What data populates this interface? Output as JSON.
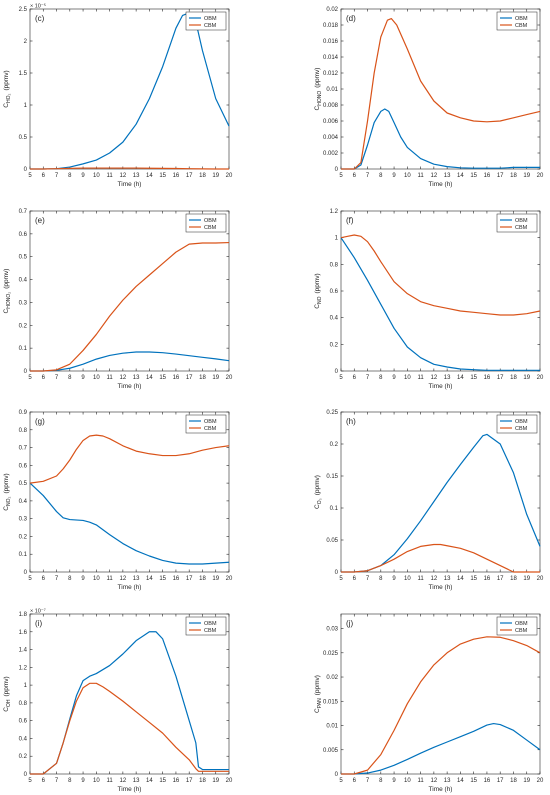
{
  "xlabel": "Time (h)",
  "series_colors": {
    "OBM": "#0072BD",
    "CBM": "#D95319"
  },
  "chart_data": [
    {
      "type": "line",
      "panel_label": "(c)",
      "ylabel_main": "C",
      "ylabel_sub": "HO₂",
      "ylabel_unit": "(ppmv)",
      "exponent_label": "× 10⁻⁵",
      "xlim": [
        5,
        20
      ],
      "ylim": [
        0,
        2.5
      ],
      "xticks": [
        5,
        6,
        7,
        8,
        9,
        10,
        11,
        12,
        13,
        14,
        15,
        16,
        17,
        18,
        19,
        20
      ],
      "yticks": [
        0,
        0.5,
        1,
        1.5,
        2,
        2.5
      ],
      "yticklabels": [
        "0",
        "0.5",
        "1",
        "1.5",
        "2",
        "2.5"
      ],
      "legend": "top-right",
      "series": [
        {
          "name": "OBM",
          "x": [
            5,
            6,
            7,
            8,
            9,
            10,
            11,
            12,
            13,
            14,
            15,
            16,
            16.5,
            17,
            17.5,
            18,
            19,
            20
          ],
          "y": [
            0,
            0,
            0.005,
            0.03,
            0.08,
            0.14,
            0.25,
            0.42,
            0.7,
            1.1,
            1.6,
            2.2,
            2.4,
            2.44,
            2.3,
            1.85,
            1.1,
            0.67
          ]
        },
        {
          "name": "CBM",
          "x": [
            5,
            6,
            7,
            8,
            9,
            10,
            11,
            12,
            13,
            14,
            15,
            16,
            17,
            18,
            19,
            20
          ],
          "y": [
            0,
            0,
            0.005,
            0.01,
            0.015,
            0.015,
            0.015,
            0.015,
            0.015,
            0.012,
            0.01,
            0.008,
            0.005,
            0.002,
            0,
            0
          ]
        }
      ]
    },
    {
      "type": "line",
      "panel_label": "(d)",
      "ylabel_main": "C",
      "ylabel_sub": "HONO",
      "ylabel_unit": "(ppmv)",
      "exponent_label": "",
      "xlim": [
        5,
        20
      ],
      "ylim": [
        0,
        0.02
      ],
      "xticks": [
        5,
        6,
        7,
        8,
        9,
        10,
        11,
        12,
        13,
        14,
        15,
        16,
        17,
        18,
        19,
        20
      ],
      "yticks": [
        0,
        0.002,
        0.004,
        0.006,
        0.008,
        0.01,
        0.012,
        0.014,
        0.016,
        0.018,
        0.02
      ],
      "yticklabels": [
        "0",
        "0.002",
        "0.004",
        "0.006",
        "0.008",
        "0.01",
        "0.012",
        "0.014",
        "0.016",
        "0.018",
        "0.02"
      ],
      "legend": "top-right",
      "series": [
        {
          "name": "OBM",
          "x": [
            5,
            6,
            6.5,
            7,
            7.5,
            8,
            8.3,
            8.6,
            9,
            9.5,
            10,
            11,
            12,
            13,
            14,
            15,
            16,
            17,
            18,
            19,
            20
          ],
          "y": [
            0,
            0,
            0.0005,
            0.003,
            0.0058,
            0.0072,
            0.0075,
            0.0072,
            0.0058,
            0.004,
            0.0027,
            0.0013,
            0.0006,
            0.0003,
            0.00015,
            0.0001,
            0.0001,
            0.0001,
            0.0002,
            0.0002,
            0.0002
          ]
        },
        {
          "name": "CBM",
          "x": [
            5,
            6,
            6.5,
            7,
            7.5,
            8,
            8.5,
            8.8,
            9.2,
            10,
            11,
            12,
            13,
            14,
            15,
            16,
            17,
            18,
            19,
            20
          ],
          "y": [
            0,
            0,
            0.0008,
            0.006,
            0.012,
            0.0165,
            0.0186,
            0.0188,
            0.018,
            0.015,
            0.011,
            0.0085,
            0.007,
            0.0064,
            0.006,
            0.0059,
            0.006,
            0.0064,
            0.0068,
            0.0072
          ]
        }
      ]
    },
    {
      "type": "line",
      "panel_label": "(e)",
      "ylabel_main": "C",
      "ylabel_sub": "HONO₂",
      "ylabel_unit": "(ppmv)",
      "exponent_label": "",
      "xlim": [
        5,
        20
      ],
      "ylim": [
        0,
        0.7
      ],
      "xticks": [
        5,
        6,
        7,
        8,
        9,
        10,
        11,
        12,
        13,
        14,
        15,
        16,
        17,
        18,
        19,
        20
      ],
      "yticks": [
        0,
        0.1,
        0.2,
        0.3,
        0.4,
        0.5,
        0.6,
        0.7
      ],
      "yticklabels": [
        "0",
        "0.1",
        "0.2",
        "0.3",
        "0.4",
        "0.5",
        "0.6",
        "0.7"
      ],
      "legend": "top-right",
      "series": [
        {
          "name": "OBM",
          "x": [
            5,
            6,
            7,
            8,
            9,
            10,
            11,
            12,
            13,
            14,
            15,
            16,
            17,
            18,
            19,
            20
          ],
          "y": [
            0,
            0,
            0.003,
            0.012,
            0.03,
            0.052,
            0.068,
            0.078,
            0.083,
            0.083,
            0.08,
            0.074,
            0.067,
            0.06,
            0.053,
            0.045
          ]
        },
        {
          "name": "CBM",
          "x": [
            5,
            6,
            7,
            8,
            9,
            10,
            11,
            12,
            13,
            14,
            15,
            16,
            17,
            18,
            19,
            20
          ],
          "y": [
            0,
            0,
            0.005,
            0.03,
            0.09,
            0.16,
            0.24,
            0.31,
            0.37,
            0.42,
            0.47,
            0.52,
            0.555,
            0.56,
            0.56,
            0.562
          ]
        }
      ]
    },
    {
      "type": "line",
      "panel_label": "(f)",
      "ylabel_main": "C",
      "ylabel_sub": "NO",
      "ylabel_unit": "(ppmv)",
      "exponent_label": "",
      "xlim": [
        5,
        20
      ],
      "ylim": [
        0,
        1.2
      ],
      "xticks": [
        5,
        6,
        7,
        8,
        9,
        10,
        11,
        12,
        13,
        14,
        15,
        16,
        17,
        18,
        19,
        20
      ],
      "yticks": [
        0,
        0.2,
        0.4,
        0.6,
        0.8,
        1,
        1.2
      ],
      "yticklabels": [
        "0",
        "0.2",
        "0.4",
        "0.6",
        "0.8",
        "1",
        "1.2"
      ],
      "legend": "top-right",
      "series": [
        {
          "name": "OBM",
          "x": [
            5,
            6,
            7,
            8,
            9,
            10,
            11,
            12,
            13,
            14,
            15,
            16,
            17,
            18,
            19,
            20
          ],
          "y": [
            1.0,
            0.85,
            0.68,
            0.5,
            0.32,
            0.18,
            0.1,
            0.05,
            0.03,
            0.015,
            0.01,
            0.005,
            0.005,
            0.005,
            0.005,
            0.005
          ]
        },
        {
          "name": "CBM",
          "x": [
            5,
            5.5,
            6,
            6.5,
            7,
            7.5,
            8,
            9,
            10,
            11,
            12,
            13,
            14,
            15,
            16,
            17,
            18,
            19,
            20
          ],
          "y": [
            1.0,
            1.01,
            1.02,
            1.01,
            0.97,
            0.9,
            0.82,
            0.67,
            0.58,
            0.52,
            0.49,
            0.47,
            0.45,
            0.44,
            0.43,
            0.42,
            0.42,
            0.43,
            0.45
          ]
        }
      ]
    },
    {
      "type": "line",
      "panel_label": "(g)",
      "ylabel_main": "C",
      "ylabel_sub": "NO₂",
      "ylabel_unit": "(ppmv)",
      "exponent_label": "",
      "xlim": [
        5,
        20
      ],
      "ylim": [
        0,
        0.9
      ],
      "xticks": [
        5,
        6,
        7,
        8,
        9,
        10,
        11,
        12,
        13,
        14,
        15,
        16,
        17,
        18,
        19,
        20
      ],
      "yticks": [
        0,
        0.1,
        0.2,
        0.3,
        0.4,
        0.5,
        0.6,
        0.7,
        0.8,
        0.9
      ],
      "yticklabels": [
        "0",
        "0.1",
        "0.2",
        "0.3",
        "0.4",
        "0.5",
        "0.6",
        "0.7",
        "0.8",
        "0.9"
      ],
      "legend": "top-right",
      "series": [
        {
          "name": "OBM",
          "x": [
            5,
            6,
            7,
            7.5,
            8,
            9,
            9.5,
            10,
            11,
            12,
            13,
            14,
            15,
            16,
            17,
            18,
            19,
            20
          ],
          "y": [
            0.5,
            0.43,
            0.34,
            0.305,
            0.295,
            0.29,
            0.28,
            0.265,
            0.21,
            0.16,
            0.12,
            0.09,
            0.065,
            0.05,
            0.045,
            0.045,
            0.05,
            0.055
          ]
        },
        {
          "name": "CBM",
          "x": [
            5,
            6,
            7,
            7.5,
            8,
            8.5,
            9,
            9.5,
            10,
            10.5,
            11,
            12,
            13,
            14,
            15,
            16,
            17,
            18,
            19,
            20
          ],
          "y": [
            0.5,
            0.51,
            0.54,
            0.58,
            0.63,
            0.69,
            0.74,
            0.765,
            0.77,
            0.765,
            0.75,
            0.71,
            0.68,
            0.665,
            0.655,
            0.655,
            0.665,
            0.685,
            0.7,
            0.71
          ]
        }
      ]
    },
    {
      "type": "line",
      "panel_label": "(h)",
      "ylabel_main": "C",
      "ylabel_sub": "O₃",
      "ylabel_unit": "(ppmv)",
      "exponent_label": "",
      "xlim": [
        5,
        20
      ],
      "ylim": [
        0,
        0.25
      ],
      "xticks": [
        5,
        6,
        7,
        8,
        9,
        10,
        11,
        12,
        13,
        14,
        15,
        16,
        17,
        18,
        19,
        20
      ],
      "yticks": [
        0,
        0.05,
        0.1,
        0.15,
        0.2,
        0.25
      ],
      "yticklabels": [
        "0",
        "0.05",
        "0.1",
        "0.15",
        "0.2",
        "0.25"
      ],
      "legend": "top-right",
      "series": [
        {
          "name": "OBM",
          "x": [
            5,
            6,
            7,
            8,
            9,
            10,
            11,
            12,
            13,
            14,
            15,
            15.7,
            16,
            17,
            18,
            19,
            20
          ],
          "y": [
            0,
            0,
            0.002,
            0.01,
            0.027,
            0.052,
            0.08,
            0.11,
            0.14,
            0.168,
            0.195,
            0.213,
            0.215,
            0.2,
            0.155,
            0.09,
            0.04
          ]
        },
        {
          "name": "CBM",
          "x": [
            5,
            6,
            7,
            8,
            9,
            10,
            11,
            12,
            12.5,
            13,
            14,
            15,
            16,
            17,
            18,
            19,
            20
          ],
          "y": [
            0,
            0,
            0.002,
            0.01,
            0.02,
            0.032,
            0.04,
            0.043,
            0.043,
            0.041,
            0.037,
            0.03,
            0.02,
            0.01,
            0,
            0,
            0
          ]
        }
      ]
    },
    {
      "type": "line",
      "panel_label": "(i)",
      "ylabel_main": "C",
      "ylabel_sub": "OH",
      "ylabel_unit": "(ppmv)",
      "exponent_label": "× 10⁻⁷",
      "xlim": [
        5,
        20
      ],
      "ylim": [
        0,
        1.8
      ],
      "xticks": [
        5,
        6,
        7,
        8,
        9,
        10,
        11,
        12,
        13,
        14,
        15,
        16,
        17,
        18,
        19,
        20
      ],
      "yticks": [
        0,
        0.2,
        0.4,
        0.6,
        0.8,
        1,
        1.2,
        1.4,
        1.6,
        1.8
      ],
      "yticklabels": [
        "0",
        "0.2",
        "0.4",
        "0.6",
        "0.8",
        "1",
        "1.2",
        "1.4",
        "1.6",
        "1.8"
      ],
      "legend": "top-right",
      "series": [
        {
          "name": "OBM",
          "x": [
            5,
            6,
            7,
            7.5,
            8,
            8.5,
            9,
            9.5,
            10,
            11,
            12,
            13,
            14,
            14.5,
            15,
            16,
            17,
            17.5,
            17.7,
            18,
            19,
            20
          ],
          "y": [
            0,
            0,
            0.12,
            0.35,
            0.62,
            0.88,
            1.05,
            1.1,
            1.13,
            1.22,
            1.35,
            1.5,
            1.6,
            1.6,
            1.52,
            1.1,
            0.6,
            0.35,
            0.08,
            0.05,
            0.05,
            0.05
          ]
        },
        {
          "name": "CBM",
          "x": [
            5,
            6,
            7,
            7.5,
            8,
            8.5,
            9,
            9.5,
            10,
            10.5,
            11,
            12,
            13,
            14,
            15,
            16,
            17,
            17.5,
            17.7,
            18,
            19,
            20
          ],
          "y": [
            0,
            0,
            0.12,
            0.35,
            0.6,
            0.82,
            0.97,
            1.02,
            1.02,
            0.98,
            0.93,
            0.82,
            0.7,
            0.58,
            0.46,
            0.3,
            0.16,
            0.06,
            0.03,
            0.03,
            0.03,
            0.03
          ]
        }
      ]
    },
    {
      "type": "line",
      "panel_label": "(j)",
      "ylabel_main": "C",
      "ylabel_sub": "PAN",
      "ylabel_unit": "(ppmv)",
      "exponent_label": "",
      "xlim": [
        5,
        20
      ],
      "ylim": [
        0,
        0.033
      ],
      "xticks": [
        5,
        6,
        7,
        8,
        9,
        10,
        11,
        12,
        13,
        14,
        15,
        16,
        17,
        18,
        19,
        20
      ],
      "yticks": [
        0,
        0.005,
        0.01,
        0.015,
        0.02,
        0.025,
        0.03
      ],
      "yticklabels": [
        "0",
        "0.005",
        "0.01",
        "0.015",
        "0.02",
        "0.025",
        "0.03"
      ],
      "legend": "top-right",
      "series": [
        {
          "name": "OBM",
          "x": [
            5,
            6,
            7,
            8,
            9,
            10,
            11,
            12,
            13,
            14,
            15,
            16,
            16.5,
            17,
            18,
            19,
            20
          ],
          "y": [
            0,
            0,
            0.0002,
            0.0008,
            0.0018,
            0.003,
            0.0043,
            0.0055,
            0.0066,
            0.0077,
            0.0088,
            0.0101,
            0.0104,
            0.0102,
            0.009,
            0.007,
            0.005
          ]
        },
        {
          "name": "CBM",
          "x": [
            5,
            6,
            7,
            8,
            9,
            10,
            11,
            12,
            13,
            14,
            15,
            16,
            17,
            18,
            19,
            20
          ],
          "y": [
            0,
            0,
            0.0008,
            0.004,
            0.009,
            0.0145,
            0.019,
            0.0225,
            0.025,
            0.0268,
            0.0278,
            0.0283,
            0.0282,
            0.0275,
            0.0265,
            0.025
          ]
        }
      ]
    }
  ]
}
